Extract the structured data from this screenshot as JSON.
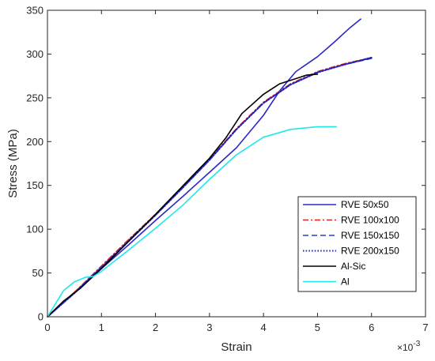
{
  "chart_data": {
    "type": "line",
    "xlabel": "Strain",
    "ylabel": "Stress (MPa)",
    "x_exponent_label": "×10",
    "x_exponent_power": "-3",
    "xlim": [
      0,
      7
    ],
    "ylim": [
      0,
      350
    ],
    "xticks": [
      "0",
      "1",
      "2",
      "3",
      "4",
      "5",
      "6",
      "7"
    ],
    "yticks": [
      "0",
      "50",
      "100",
      "150",
      "200",
      "250",
      "300",
      "350"
    ],
    "legend_position": "lower-right",
    "grid": false,
    "series": [
      {
        "name": "RVE 50x50",
        "color": "#2b28c9",
        "style": "solid",
        "points": [
          [
            0,
            0
          ],
          [
            0.5,
            28
          ],
          [
            1,
            55
          ],
          [
            1.5,
            82
          ],
          [
            2,
            110
          ],
          [
            2.5,
            137
          ],
          [
            3,
            165
          ],
          [
            3.5,
            193
          ],
          [
            4,
            230
          ],
          [
            4.3,
            258
          ],
          [
            4.6,
            280
          ],
          [
            5,
            297
          ],
          [
            5.3,
            313
          ],
          [
            5.6,
            330
          ],
          [
            5.8,
            340
          ]
        ]
      },
      {
        "name": "RVE 100x100",
        "color": "#e02020",
        "style": "dashdot",
        "points": [
          [
            0,
            0
          ],
          [
            0.5,
            28
          ],
          [
            1,
            58
          ],
          [
            1.5,
            88
          ],
          [
            2,
            117
          ],
          [
            2.5,
            148
          ],
          [
            3,
            180
          ],
          [
            3.5,
            215
          ],
          [
            4,
            245
          ],
          [
            4.5,
            266
          ],
          [
            5,
            280
          ],
          [
            5.5,
            289
          ],
          [
            6,
            296
          ]
        ]
      },
      {
        "name": "RVE 150x150",
        "color": "#2a3fd0",
        "style": "dashed",
        "points": [
          [
            0,
            0
          ],
          [
            0.5,
            27
          ],
          [
            1,
            57
          ],
          [
            1.5,
            87
          ],
          [
            2,
            116
          ],
          [
            2.5,
            147
          ],
          [
            3,
            179
          ],
          [
            3.5,
            214
          ],
          [
            4,
            244
          ],
          [
            4.5,
            265
          ],
          [
            5,
            279
          ],
          [
            5.5,
            288
          ],
          [
            6,
            295
          ]
        ]
      },
      {
        "name": "RVE 200x150",
        "color": "#1c1fbf",
        "style": "dotted",
        "points": [
          [
            0,
            0
          ],
          [
            0.5,
            27
          ],
          [
            1,
            56
          ],
          [
            1.5,
            86
          ],
          [
            2,
            116
          ],
          [
            2.5,
            147
          ],
          [
            3,
            179
          ],
          [
            3.5,
            214
          ],
          [
            4,
            244
          ],
          [
            4.5,
            265
          ],
          [
            5,
            279
          ],
          [
            5.5,
            288
          ],
          [
            6,
            296
          ]
        ]
      },
      {
        "name": "Al-Sic",
        "color": "#000000",
        "style": "solid",
        "points": [
          [
            0,
            0
          ],
          [
            0.3,
            18
          ],
          [
            0.6,
            32
          ],
          [
            1,
            55
          ],
          [
            1.5,
            86
          ],
          [
            2,
            117
          ],
          [
            2.5,
            149
          ],
          [
            3,
            181
          ],
          [
            3.3,
            204
          ],
          [
            3.6,
            232
          ],
          [
            4,
            254
          ],
          [
            4.3,
            266
          ],
          [
            4.6,
            272
          ],
          [
            4.8,
            276
          ],
          [
            5,
            277
          ]
        ]
      },
      {
        "name": "Al",
        "color": "#21e8e8",
        "style": "solid",
        "points": [
          [
            0,
            0
          ],
          [
            0.3,
            30
          ],
          [
            0.5,
            40
          ],
          [
            0.7,
            45
          ],
          [
            0.85,
            46
          ],
          [
            1,
            52
          ],
          [
            1.5,
            76
          ],
          [
            2,
            101
          ],
          [
            2.5,
            127
          ],
          [
            3,
            157
          ],
          [
            3.5,
            185
          ],
          [
            4,
            205
          ],
          [
            4.5,
            214
          ],
          [
            5,
            217
          ],
          [
            5.35,
            217
          ]
        ]
      }
    ]
  }
}
